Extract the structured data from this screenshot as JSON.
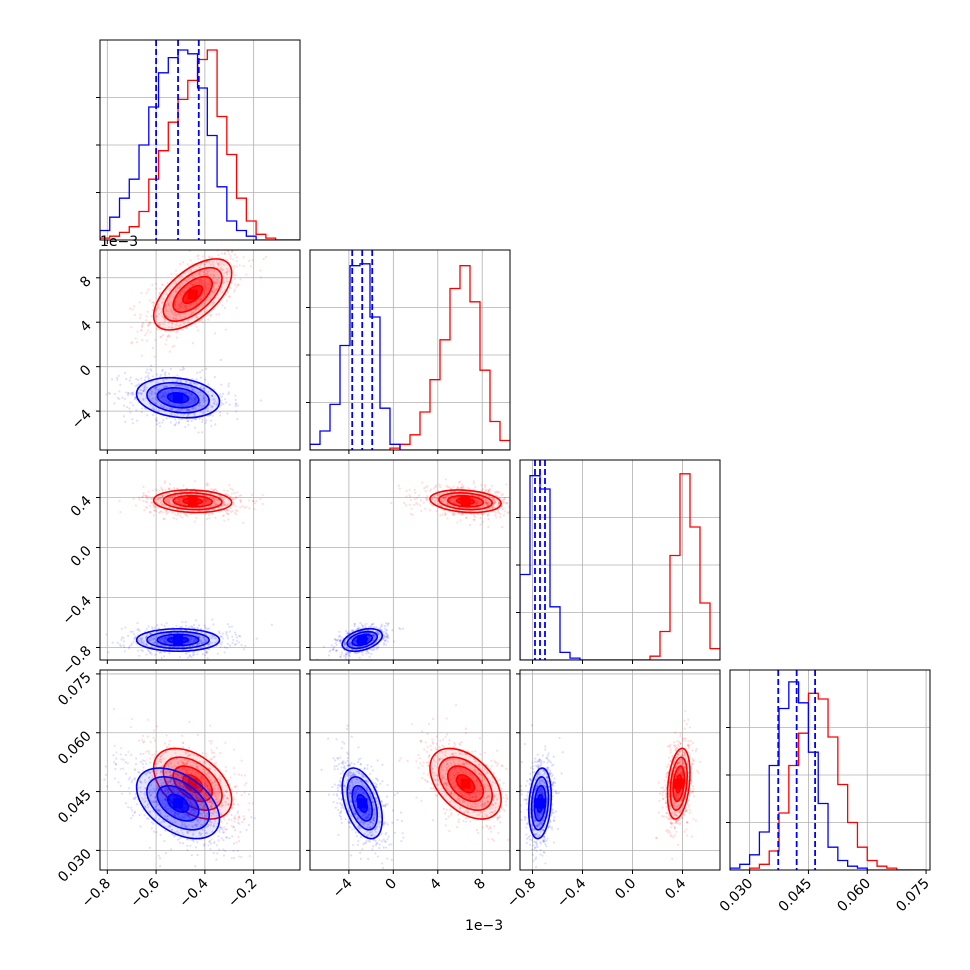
{
  "chart_data": {
    "type": "corner",
    "title": "",
    "grid": true,
    "colors": {
      "series_a": "#ff0000",
      "series_b": "#0000ff"
    },
    "parameters": [
      {
        "index": 0,
        "range": [
          -0.83,
          -0.01
        ],
        "ticks": [
          -0.8,
          -0.6,
          -0.4,
          -0.2
        ],
        "tick_labels": [
          "−0.8",
          "−0.6",
          "−0.4",
          "−0.2"
        ],
        "offset_text": ""
      },
      {
        "index": 1,
        "range": [
          -0.0075,
          0.0105
        ],
        "ticks": [
          -0.004,
          0.0,
          0.004,
          0.008
        ],
        "tick_labels": [
          "−4",
          "0",
          "4",
          "8"
        ],
        "offset_text": "1e−3"
      },
      {
        "index": 2,
        "range": [
          -0.9,
          0.7
        ],
        "ticks": [
          -0.8,
          -0.4,
          0.0,
          0.4
        ],
        "tick_labels": [
          "−0.8",
          "−0.4",
          "0.0",
          "0.4"
        ],
        "offset_text": ""
      },
      {
        "index": 3,
        "range": [
          0.025,
          0.076
        ],
        "ticks": [
          0.03,
          0.045,
          0.06,
          0.075
        ],
        "tick_labels": [
          "0.030",
          "0.045",
          "0.060",
          "0.075"
        ],
        "offset_text": ""
      }
    ],
    "series": [
      {
        "color": "#ff0000",
        "mean": [
          -0.45,
          0.0065,
          0.37,
          0.047
        ],
        "sd": [
          0.08,
          0.0016,
          0.045,
          0.0045
        ],
        "corr": [
          [
            1,
            0.6,
            -0.1,
            -0.45
          ],
          [
            0.6,
            1,
            -0.2,
            -0.45
          ],
          [
            -0.1,
            -0.2,
            1,
            0.3
          ],
          [
            -0.45,
            -0.45,
            0.3,
            1
          ]
        ]
      },
      {
        "color": "#0000ff",
        "mean": [
          -0.51,
          -0.0028,
          -0.74,
          0.042
        ],
        "sd": [
          0.085,
          0.0009,
          0.045,
          0.0045
        ],
        "corr": [
          [
            1,
            -0.2,
            0.0,
            -0.45
          ],
          [
            -0.2,
            1,
            0.4,
            -0.45
          ],
          [
            0.0,
            0.4,
            1,
            0.2
          ],
          [
            -0.45,
            -0.45,
            0.2,
            1
          ]
        ]
      }
    ],
    "quantile_lines": {
      "color": "#0000ff",
      "values": [
        [
          -0.6,
          -0.51,
          -0.425
        ],
        [
          -0.0037,
          -0.0028,
          -0.0019
        ],
        [
          -0.78,
          -0.74,
          -0.7
        ],
        [
          0.0373,
          0.042,
          0.0467
        ]
      ]
    },
    "histograms": [
      {
        "bins": [
          -0.83,
          -0.79,
          -0.75,
          -0.71,
          -0.67,
          -0.63,
          -0.59,
          -0.55,
          -0.51,
          -0.47,
          -0.43,
          -0.39,
          -0.35,
          -0.31,
          -0.27,
          -0.23,
          -0.19,
          -0.15,
          -0.11,
          -0.07,
          -0.03,
          -0.01
        ],
        "series_a": [
          0.01,
          0.02,
          0.04,
          0.07,
          0.15,
          0.32,
          0.47,
          0.62,
          0.74,
          0.84,
          0.95,
          1.0,
          0.65,
          0.45,
          0.22,
          0.1,
          0.03,
          0.01,
          0.0,
          0.0,
          0.0
        ],
        "series_b": [
          0.05,
          0.12,
          0.22,
          0.32,
          0.5,
          0.7,
          0.88,
          0.96,
          1.0,
          0.98,
          0.8,
          0.55,
          0.28,
          0.1,
          0.05,
          0.02,
          0.0,
          0.0,
          0.0,
          0.0,
          0.0
        ]
      },
      {
        "bins": [
          -0.0075,
          -0.0066,
          -0.0057,
          -0.0048,
          -0.0039,
          -0.003,
          -0.0021,
          -0.0012,
          -0.0003,
          0.0006,
          0.0015,
          0.0024,
          0.0033,
          0.0042,
          0.0051,
          0.006,
          0.0069,
          0.0078,
          0.0087,
          0.0096,
          0.0105
        ],
        "series_a": [
          0.0,
          0.0,
          0.0,
          0.0,
          0.0,
          0.0,
          0.0,
          0.0,
          0.01,
          0.03,
          0.08,
          0.2,
          0.37,
          0.58,
          0.85,
          0.97,
          0.78,
          0.42,
          0.15,
          0.05
        ],
        "series_b": [
          0.03,
          0.1,
          0.24,
          0.55,
          0.97,
          0.98,
          0.7,
          0.22,
          0.03,
          0.0,
          0.0,
          0.0,
          0.0,
          0.0,
          0.0,
          0.0,
          0.0,
          0.0,
          0.0,
          0.0
        ]
      },
      {
        "bins": [
          -0.9,
          -0.82,
          -0.74,
          -0.66,
          -0.58,
          -0.5,
          -0.42,
          -0.34,
          -0.26,
          -0.18,
          -0.1,
          -0.02,
          0.06,
          0.14,
          0.22,
          0.3,
          0.38,
          0.46,
          0.54,
          0.62,
          0.7
        ],
        "series_a": [
          0.0,
          0.0,
          0.0,
          0.0,
          0.0,
          0.0,
          0.0,
          0.0,
          0.0,
          0.0,
          0.0,
          0.0,
          0.0,
          0.02,
          0.15,
          0.55,
          0.98,
          0.7,
          0.3,
          0.06
        ],
        "series_b": [
          0.45,
          0.97,
          0.9,
          0.28,
          0.04,
          0.01,
          0.0,
          0.0,
          0.0,
          0.0,
          0.0,
          0.0,
          0.0,
          0.0,
          0.0,
          0.0,
          0.0,
          0.0,
          0.0,
          0.0
        ]
      },
      {
        "bins": [
          0.025,
          0.0275,
          0.03,
          0.0325,
          0.035,
          0.0375,
          0.04,
          0.0425,
          0.045,
          0.0475,
          0.05,
          0.0525,
          0.055,
          0.0575,
          0.06,
          0.0625,
          0.065,
          0.0675,
          0.07,
          0.0725,
          0.075
        ],
        "series_a": [
          0.0,
          0.0,
          0.01,
          0.03,
          0.1,
          0.3,
          0.55,
          0.72,
          0.93,
          0.9,
          0.7,
          0.45,
          0.25,
          0.12,
          0.05,
          0.02,
          0.01,
          0.0,
          0.0,
          0.0
        ],
        "series_b": [
          0.01,
          0.03,
          0.08,
          0.2,
          0.55,
          0.85,
          0.99,
          0.88,
          0.62,
          0.35,
          0.12,
          0.05,
          0.02,
          0.01,
          0.0,
          0.0,
          0.0,
          0.0,
          0.0,
          0.0
        ]
      }
    ]
  }
}
